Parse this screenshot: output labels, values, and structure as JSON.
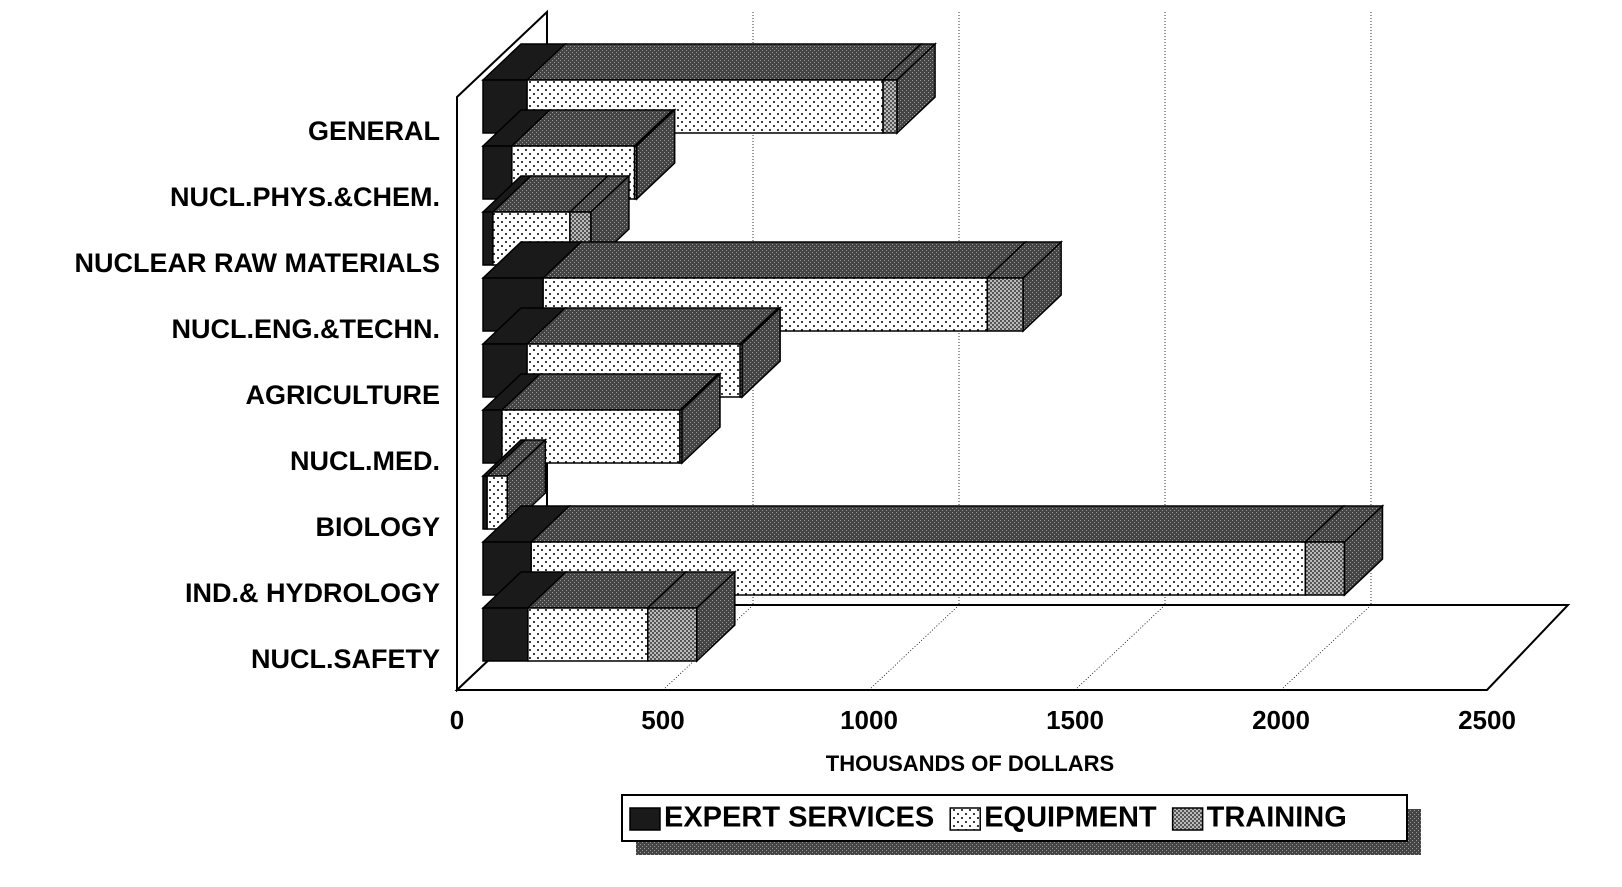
{
  "chart_data": {
    "type": "bar3d_stacked_horizontal",
    "xlabel": "THOUSANDS OF DOLLARS",
    "categories": [
      "GENERAL",
      "NUCL.PHYS.&CHEM.",
      "NUCLEAR RAW MATERIALS",
      "NUCL.ENG.&TECHN.",
      "AGRICULTURE",
      "NUCL.MED.",
      "BIOLOGY",
      "IND.& HYDROLOGY",
      "NUCL.SAFETY"
    ],
    "series": [
      {
        "name": "EXPERT SERVICES",
        "color": "#1a1a1a",
        "values": [
          107,
          70,
          24,
          146,
          107,
          46,
          10,
          117,
          109
        ]
      },
      {
        "name": "EQUIPMENT",
        "color": "#ffffff",
        "values": [
          864,
          298,
          187,
          1078,
          517,
          432,
          49,
          1879,
          291
        ]
      },
      {
        "name": "TRAINING",
        "color": "#9a9a9a",
        "values": [
          34,
          5,
          51,
          87,
          5,
          5,
          0,
          95,
          119
        ]
      }
    ],
    "xlim": [
      0,
      2500
    ],
    "xticks": [
      0,
      500,
      1000,
      1500,
      2000,
      2500
    ],
    "grid": true
  }
}
